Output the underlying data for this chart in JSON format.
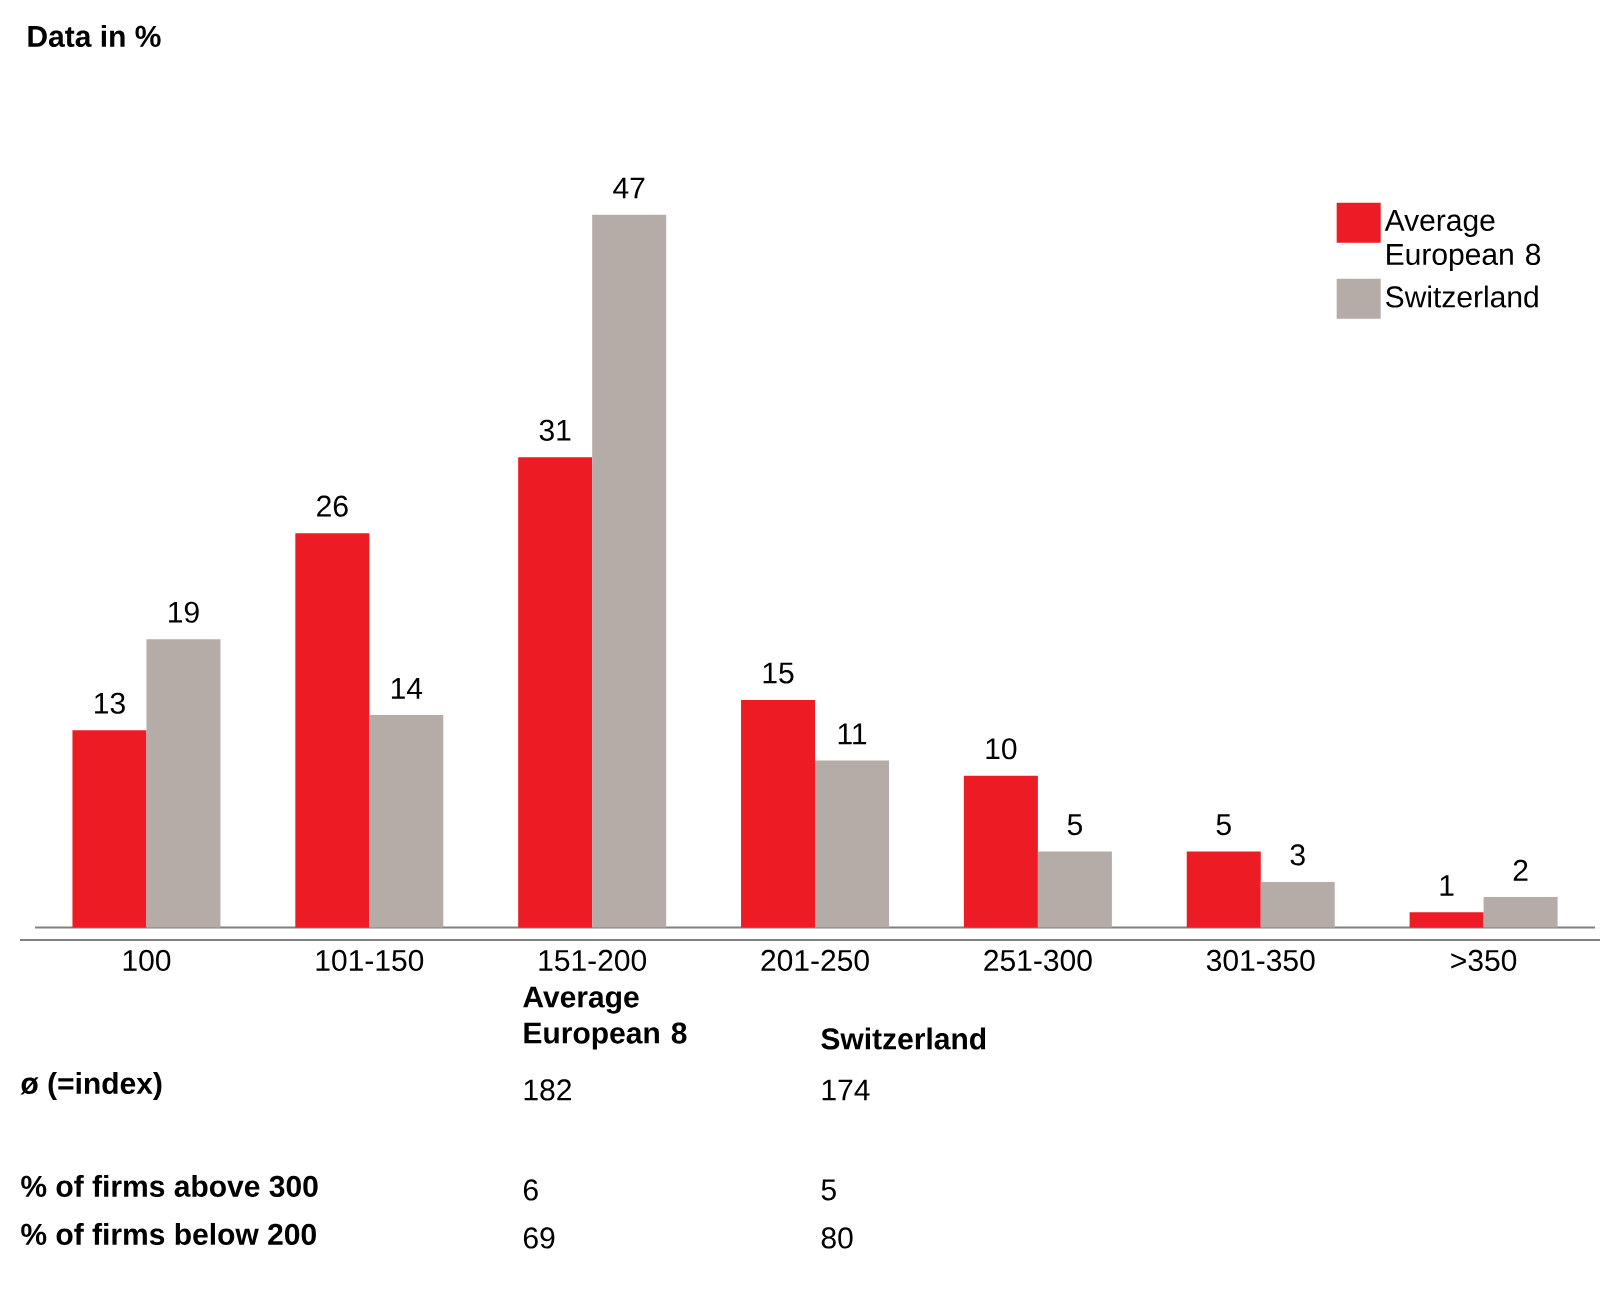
{
  "chart_data": {
    "type": "bar",
    "title": "Data in %",
    "categories": [
      "100",
      "101-150",
      "151-200",
      "201-250",
      "251-300",
      "301-350",
      ">350"
    ],
    "series": [
      {
        "name": "Average European 8",
        "color": "#ed1c24",
        "values": [
          13,
          26,
          31,
          15,
          10,
          5,
          1
        ]
      },
      {
        "name": "Switzerland",
        "color": "#b5aca7",
        "values": [
          19,
          14,
          47,
          11,
          5,
          3,
          2
        ]
      }
    ],
    "data_labels": true,
    "legend": "top right",
    "annotations": [
      "Average European 8",
      "Switzerland",
      "ø (=index)",
      "182",
      "174",
      "% of firms above 300",
      "6",
      "5",
      "% of firms below 200",
      "69",
      "80"
    ]
  }
}
